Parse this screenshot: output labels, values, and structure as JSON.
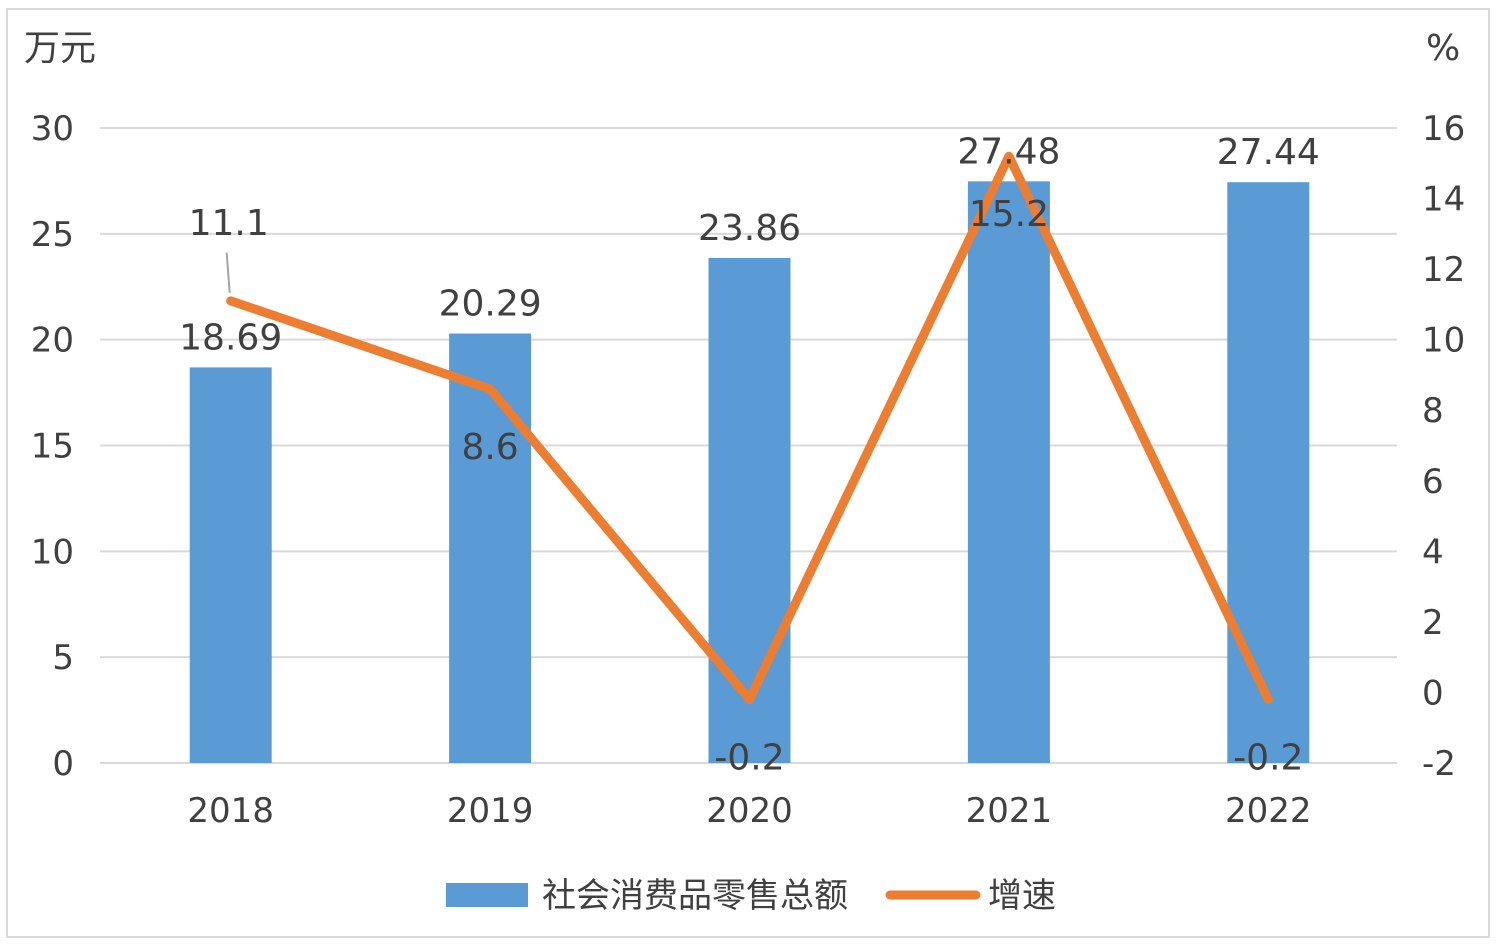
{
  "chart_data": {
    "type": "bar",
    "categories": [
      "2018",
      "2019",
      "2020",
      "2021",
      "2022"
    ],
    "series": [
      {
        "name": "社会消费品零售总额",
        "type": "bar",
        "axis": "left",
        "values": [
          18.69,
          20.29,
          23.86,
          27.48,
          27.44
        ],
        "labels": [
          "18.69",
          "20.29",
          "23.86",
          "27.48",
          "27.44"
        ],
        "color": "#5b9bd5"
      },
      {
        "name": "增速",
        "type": "line",
        "axis": "right",
        "values": [
          11.1,
          8.6,
          -0.2,
          15.2,
          -0.2
        ],
        "labels": [
          "11.1",
          "8.6",
          "-0.2",
          "15.2",
          "-0.2"
        ],
        "color": "#ed7d31"
      }
    ],
    "y_left": {
      "unit": "万元",
      "ylim": [
        0,
        30
      ],
      "ticks": [
        "0",
        "5",
        "10",
        "15",
        "20",
        "25",
        "30"
      ]
    },
    "y_right": {
      "unit": "%",
      "ylim": [
        -2,
        16
      ],
      "ticks": [
        "-2",
        "0",
        "2",
        "4",
        "6",
        "8",
        "10",
        "12",
        "14",
        "16"
      ]
    },
    "grid": true,
    "legend_position": "bottom",
    "colors": {
      "gridline": "#d9d9d9",
      "text": "#404040"
    }
  }
}
